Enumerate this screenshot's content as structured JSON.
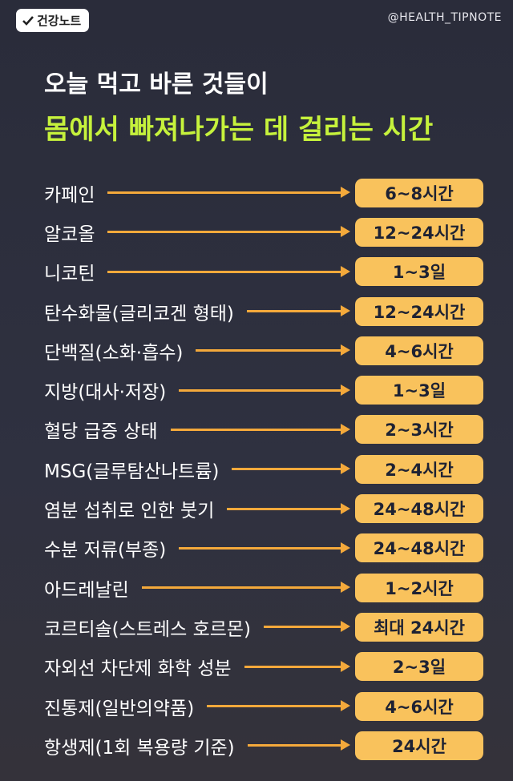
{
  "header": {
    "badge": "건강노트",
    "handle": "@HEALTH_TIPNOTE",
    "title_line1": "오늘 먹고 바른 것들이",
    "title_line2": "몸에서 빠져나가는 데 걸리는 시간"
  },
  "rows": [
    {
      "item": "카페인",
      "time": "6~8시간"
    },
    {
      "item": "알코올",
      "time": "12~24시간"
    },
    {
      "item": "니코틴",
      "time": "1~3일"
    },
    {
      "item": "탄수화물(글리코겐 형태)",
      "time": "12~24시간"
    },
    {
      "item": "단백질(소화·흡수)",
      "time": "4~6시간"
    },
    {
      "item": "지방(대사·저장)",
      "time": "1~3일"
    },
    {
      "item": "혈당 급증 상태",
      "time": "2~3시간"
    },
    {
      "item": "MSG(글루탐산나트륨)",
      "time": "2~4시간"
    },
    {
      "item": "염분 섭취로 인한 붓기",
      "time": "24~48시간"
    },
    {
      "item": "수분 저류(부종)",
      "time": "24~48시간"
    },
    {
      "item": "아드레날린",
      "time": "1~2시간"
    },
    {
      "item": "코르티솔(스트레스 호르몬)",
      "time": "최대 24시간"
    },
    {
      "item": "자외선 차단제 화학 성분",
      "time": "2~3일"
    },
    {
      "item": "진통제(일반의약품)",
      "time": "4~6시간"
    },
    {
      "item": "항생제(1회 복용량 기준)",
      "time": "24시간"
    }
  ]
}
